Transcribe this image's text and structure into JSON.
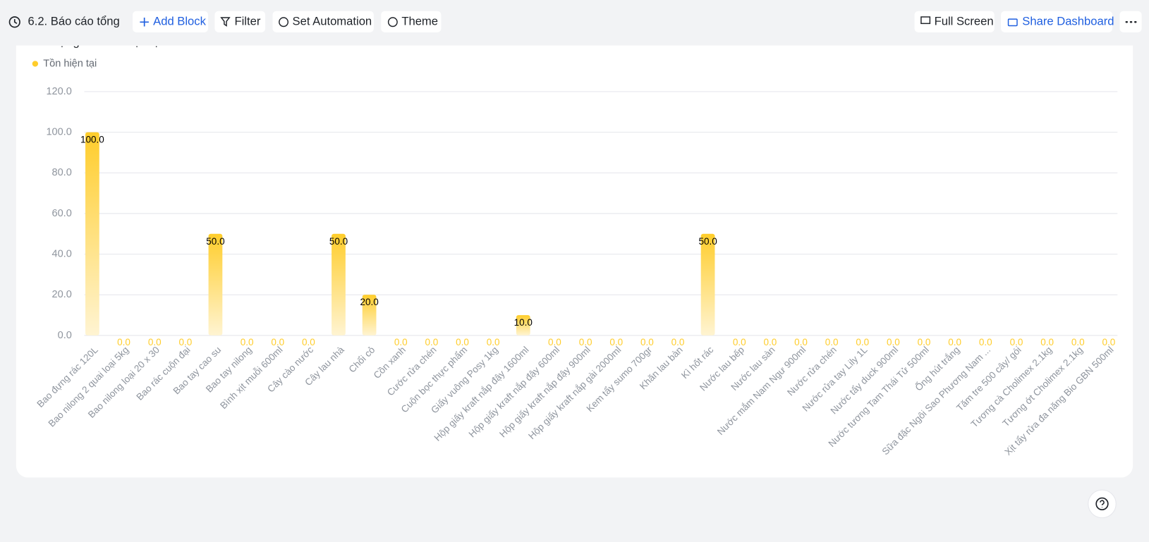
{
  "header": {
    "title": "6.2. Báo cáo tổng"
  },
  "toolbar": {
    "left": [
      "Add Block",
      "Filter",
      "Set Automation",
      "Theme"
    ],
    "right": [
      "Full Screen",
      "Share Dashboard"
    ]
  },
  "chart_data": {
    "type": "bar",
    "title": "Số lượng tồn kho hiện tại",
    "series": [
      {
        "name": "Tồn hiện tại",
        "color": "#ffcd2b",
        "values": [
          100,
          0,
          0,
          0,
          50,
          0,
          0,
          0,
          50,
          20,
          0,
          0,
          0,
          0,
          10,
          0,
          0,
          0,
          0,
          0,
          50,
          0,
          0,
          0,
          0,
          0,
          0,
          0,
          0,
          0,
          0,
          0,
          0,
          0
        ],
        "value_labels": [
          "100.0",
          "0.0",
          "0.0",
          "0.0",
          "50.0",
          "0.0",
          "0.0",
          "0.0",
          "50.0",
          "20.0",
          "0.0",
          "0.0",
          "0.0",
          "0.0",
          "10.0",
          "0.0",
          "0.0",
          "0.0",
          "0.0",
          "0.0",
          "50.0",
          "0.0",
          "0.0",
          "0.0",
          "0.0",
          "0.0",
          "0.0",
          "0.0",
          "0.0",
          "0.0",
          "0.0",
          "0.0",
          "0.0",
          "0.0"
        ]
      }
    ],
    "categories": [
      "Bao đựng rác 120L",
      "Bao nilong 2 quai loại 5kg",
      "Bao nilong loại 20 x 30",
      "Bao rác cuộn đại",
      "Bao tay cao su",
      "Bao tay nilong",
      "Bình xịt muỗi 600ml",
      "Cây cào nước",
      "Cây lau nhà",
      "Chổi cỏ",
      "Cồn xanh",
      "Cước rửa chén",
      "Cuộn bọc thực phẩm",
      "Giấy vuông Posy 1kg",
      "Hộp giấy kraft nắp đậy 1600ml",
      "Hộp giấy kraft nắp đậy 600ml",
      "Hộp giấy kraft nắp đậy 900ml",
      "Hộp giấy kraft nắp gài 2000ml",
      "Kem tẩy sumo 700gr",
      "Khăn lau bàn",
      "Kì hốt rác",
      "Nước lau bếp",
      "Nước lau sàn",
      "Nước mắm Nam Ngư 900ml",
      "Nước rửa chén",
      "Nước rửa tay Lily 1L",
      "Nước tẩy duck 900ml",
      "Nước tương Tam Thái Tử 500ml",
      "Ống hút trắng",
      "Sữa đặc Ngôi Sao Phương Nam ...",
      "Tăm tre 500 cây/ gói",
      "Tương cà Cholimex 2.1kg",
      "Tương ớt Cholimex 2.1kg",
      "Xịt tẩy rửa đa năng Bio GBN 500ml"
    ],
    "ylim": [
      0,
      120
    ],
    "yticks": [
      {
        "value": 0,
        "label": "0.0"
      },
      {
        "value": 20,
        "label": "20.0"
      },
      {
        "value": 40,
        "label": "40.0"
      },
      {
        "value": 60,
        "label": "60.0"
      },
      {
        "value": 80,
        "label": "80.0"
      },
      {
        "value": 100,
        "label": "100.0"
      },
      {
        "value": 120,
        "label": "120.0"
      }
    ],
    "grid": true
  }
}
